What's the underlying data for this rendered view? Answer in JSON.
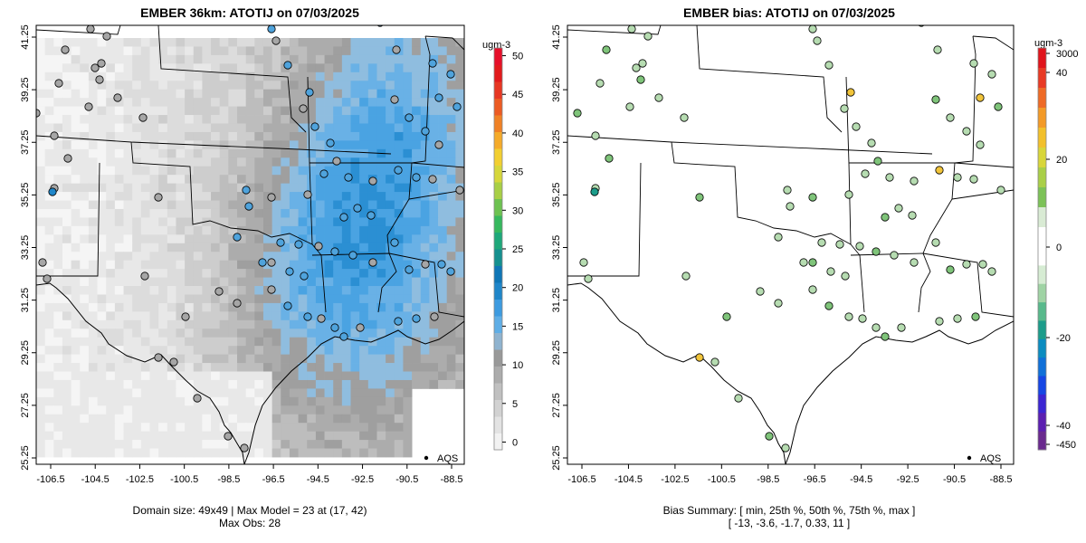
{
  "panels": [
    {
      "id": "model",
      "title": "EMBER 36km: ATOTIJ on 07/03/2025",
      "caption_lines": [
        "Domain size: 49x49 | Max Model = 23 at (17, 42)",
        "Max Obs: 28"
      ],
      "legend_label": "AQS",
      "colorbar": {
        "unit": "ugm-3",
        "ticks": [
          "0",
          "5",
          "10",
          "15",
          "20",
          "25",
          "30",
          "35",
          "40",
          "45",
          "50"
        ],
        "range": [
          -1,
          51
        ],
        "colors": [
          "#f2f2f2",
          "#e3e3e3",
          "#d2d2d2",
          "#c0c0c0",
          "#acacac",
          "#999999",
          "#8fb3cf",
          "#5faee6",
          "#3d9be0",
          "#1f86c9",
          "#0f76b6",
          "#15908f",
          "#1ea87a",
          "#36b85e",
          "#6dc251",
          "#a8cf46",
          "#d6d73b",
          "#f2cf31",
          "#f5ab2a",
          "#f08125",
          "#ec5b23",
          "#e73723",
          "#e21a1c",
          "#e60f2a"
        ]
      }
    },
    {
      "id": "bias",
      "title": "EMBER bias: ATOTIJ on 07/03/2025",
      "caption_lines": [
        "Bias Summary: [ min, 25th %, 50th %, 75th %, max ]",
        "[ -13,   -3.6,   -1.7,   0.33,   11 ]"
      ],
      "legend_label": "AQS",
      "colorbar": {
        "unit": "ugm-3",
        "ticks": [
          "3000",
          "40",
          "20",
          "0",
          "-20",
          "-40",
          "-450"
        ],
        "top_colors": [
          "#e0141c",
          "#e83a24",
          "#ee6a26",
          "#f39a27",
          "#f2c02b",
          "#d8d63a",
          "#a9cf48",
          "#7cc257",
          "#d9ebd4",
          "#ffffff"
        ],
        "bottom_colors": [
          "#ffffff",
          "#d6ecd3",
          "#9fd3a4",
          "#58b98b",
          "#1c9c8a",
          "#0b8cc0",
          "#1070d8",
          "#1646e4",
          "#3b25d2",
          "#5b1fb0",
          "#6a2a8e"
        ]
      }
    }
  ],
  "lat_labels": [
    "25.25",
    "27.25",
    "29.25",
    "31.25",
    "33.25",
    "35.25",
    "37.25",
    "39.25",
    "41.25"
  ],
  "lon_labels": [
    "-106.5",
    "-104.5",
    "-102.5",
    "-100.5",
    "-98.5",
    "-96.5",
    "-94.5",
    "-92.5",
    "-90.5",
    "-88.5"
  ],
  "colors": {
    "frame": "#000000",
    "site_gray": "#a6a6a6",
    "site_blue": "#4fa3dc",
    "site_lightgreen": "#b6dcb1",
    "site_green": "#7fc47a",
    "site_yellow": "#f1c43a"
  }
}
